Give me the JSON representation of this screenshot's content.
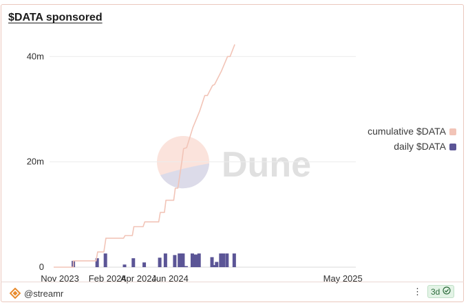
{
  "widget": {
    "title": "$DATA sponsored",
    "watermark": "Dune",
    "author": "@streamr",
    "age": "3d",
    "more_menu": "⋮",
    "author_icon": "streamr-logo-icon",
    "status_icon": "check-circle-icon"
  },
  "chart_data": {
    "type": "bar",
    "title": "$DATA sponsored",
    "xlabel": "",
    "ylabel": "",
    "x_range": [
      "2023-10-20",
      "2025-05-26"
    ],
    "x_ticks": [
      {
        "label": "Nov 2023",
        "date": "2023-11-01"
      },
      {
        "label": "Feb 2024",
        "date": "2024-02-01"
      },
      {
        "label": "Apr 2024",
        "date": "2024-04-01"
      },
      {
        "label": "Jun 2024",
        "date": "2024-06-01"
      },
      {
        "label": "May 2025",
        "date": "2025-05-01"
      }
    ],
    "ylim": [
      0,
      45000000
    ],
    "y_ticks": [
      {
        "label": "0",
        "value": 0
      },
      {
        "label": "20m",
        "value": 20000000
      },
      {
        "label": "40m",
        "value": 40000000
      }
    ],
    "grid": true,
    "legend_position": "right",
    "series": [
      {
        "name": "cumulative $DATA",
        "type": "line",
        "color": "#f2c4b7",
        "points": [
          {
            "date": "2023-10-20",
            "value": 0
          },
          {
            "date": "2023-11-27",
            "value": 0
          },
          {
            "date": "2023-11-27",
            "value": 1200000
          },
          {
            "date": "2024-01-10",
            "value": 1200000
          },
          {
            "date": "2024-01-13",
            "value": 2900000
          },
          {
            "date": "2024-01-25",
            "value": 2900000
          },
          {
            "date": "2024-01-29",
            "value": 5500000
          },
          {
            "date": "2024-03-03",
            "value": 5500000
          },
          {
            "date": "2024-03-06",
            "value": 6000000
          },
          {
            "date": "2024-03-20",
            "value": 6000000
          },
          {
            "date": "2024-03-23",
            "value": 7700000
          },
          {
            "date": "2024-04-10",
            "value": 7700000
          },
          {
            "date": "2024-04-13",
            "value": 8600000
          },
          {
            "date": "2024-05-10",
            "value": 8600000
          },
          {
            "date": "2024-05-13",
            "value": 10400000
          },
          {
            "date": "2024-05-21",
            "value": 10400000
          },
          {
            "date": "2024-05-24",
            "value": 12700000
          },
          {
            "date": "2024-06-08",
            "value": 12700000
          },
          {
            "date": "2024-06-11",
            "value": 15000000
          },
          {
            "date": "2024-06-16",
            "value": 15000000
          },
          {
            "date": "2024-06-20",
            "value": 17600000
          },
          {
            "date": "2024-06-24",
            "value": 20200000
          },
          {
            "date": "2024-06-27",
            "value": 22500000
          },
          {
            "date": "2024-07-03",
            "value": 22700000
          },
          {
            "date": "2024-07-15",
            "value": 26500000
          },
          {
            "date": "2024-07-28",
            "value": 29600000
          },
          {
            "date": "2024-08-07",
            "value": 32600000
          },
          {
            "date": "2024-08-12",
            "value": 32600000
          },
          {
            "date": "2024-08-22",
            "value": 34500000
          },
          {
            "date": "2024-08-26",
            "value": 34700000
          },
          {
            "date": "2024-09-08",
            "value": 37200000
          },
          {
            "date": "2024-09-20",
            "value": 40000000
          },
          {
            "date": "2024-09-25",
            "value": 40000000
          },
          {
            "date": "2024-10-04",
            "value": 42300000
          }
        ]
      },
      {
        "name": "daily $DATA",
        "type": "bar",
        "color": "#5b5596",
        "points": [
          {
            "date": "2023-11-27",
            "value": 1200000
          },
          {
            "date": "2024-01-12",
            "value": 1700000
          },
          {
            "date": "2024-01-28",
            "value": 2600000
          },
          {
            "date": "2024-03-05",
            "value": 500000
          },
          {
            "date": "2024-03-22",
            "value": 1700000
          },
          {
            "date": "2024-04-12",
            "value": 900000
          },
          {
            "date": "2024-05-12",
            "value": 1800000
          },
          {
            "date": "2024-05-23",
            "value": 2600000
          },
          {
            "date": "2024-06-10",
            "value": 2300000
          },
          {
            "date": "2024-06-19",
            "value": 2600000
          },
          {
            "date": "2024-06-23",
            "value": 2600000
          },
          {
            "date": "2024-06-26",
            "value": 2600000
          },
          {
            "date": "2024-07-02",
            "value": 200000
          },
          {
            "date": "2024-07-14",
            "value": 2600000
          },
          {
            "date": "2024-07-18",
            "value": 2400000
          },
          {
            "date": "2024-07-22",
            "value": 2400000
          },
          {
            "date": "2024-07-27",
            "value": 2600000
          },
          {
            "date": "2024-08-21",
            "value": 1900000
          },
          {
            "date": "2024-08-25",
            "value": 400000
          },
          {
            "date": "2024-08-30",
            "value": 1000000
          },
          {
            "date": "2024-09-07",
            "value": 2600000
          },
          {
            "date": "2024-09-12",
            "value": 2600000
          },
          {
            "date": "2024-09-19",
            "value": 2600000
          },
          {
            "date": "2024-10-03",
            "value": 2600000
          }
        ]
      }
    ]
  }
}
